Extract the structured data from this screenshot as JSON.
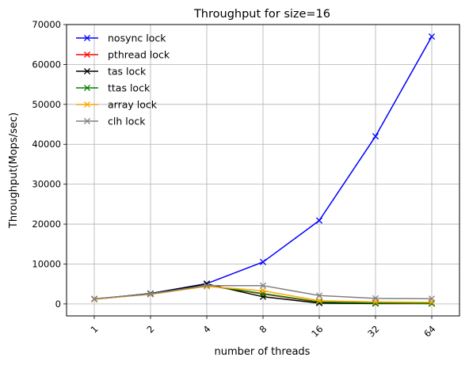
{
  "chart_data": {
    "type": "line",
    "title": "Throughput for size=16",
    "xlabel": "number of threads",
    "ylabel": "Throughput(Mops/sec)",
    "categories": [
      "1",
      "2",
      "4",
      "8",
      "16",
      "32",
      "64"
    ],
    "x_scale": "log2",
    "ylim": [
      -3000,
      70000
    ],
    "yticks": [
      0,
      10000,
      20000,
      30000,
      40000,
      50000,
      60000,
      70000
    ],
    "ytick_labels": [
      "0",
      "10000",
      "20000",
      "30000",
      "40000",
      "50000",
      "60000",
      "70000"
    ],
    "grid": true,
    "legend_position": "top-left",
    "marker": "x",
    "series": [
      {
        "name": "nosync lock",
        "color": "#0000ff",
        "values": [
          1200,
          2600,
          5100,
          10500,
          20900,
          42000,
          67000
        ]
      },
      {
        "name": "pthread lock",
        "color": "#ff0000",
        "values": [
          1200,
          2500,
          4600,
          2500,
          400,
          300,
          200
        ]
      },
      {
        "name": "tas lock",
        "color": "#000000",
        "values": [
          1200,
          2600,
          5000,
          1800,
          200,
          100,
          100
        ]
      },
      {
        "name": "ttas lock",
        "color": "#008000",
        "values": [
          1200,
          2500,
          4600,
          2600,
          500,
          200,
          100
        ]
      },
      {
        "name": "array lock",
        "color": "#ffa500",
        "values": [
          1200,
          2400,
          4400,
          3300,
          800,
          500,
          400
        ]
      },
      {
        "name": "clh lock",
        "color": "#808080",
        "values": [
          1300,
          2500,
          4600,
          4600,
          2100,
          1400,
          1300
        ]
      }
    ]
  }
}
